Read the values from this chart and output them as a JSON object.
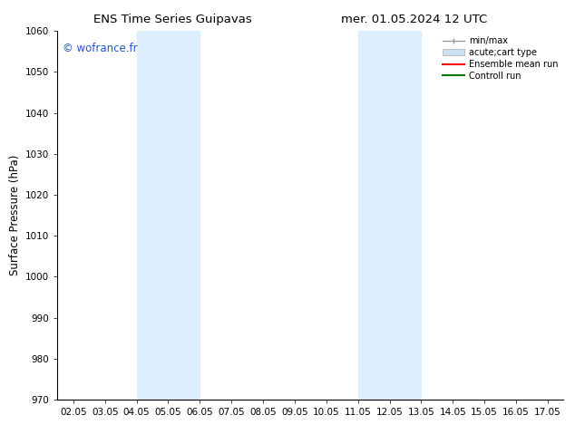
{
  "title_left": "ENS Time Series Guipavas",
  "title_right": "mer. 01.05.2024 12 UTC",
  "ylabel": "Surface Pressure (hPa)",
  "ylim": [
    970,
    1060
  ],
  "yticks": [
    970,
    980,
    990,
    1000,
    1010,
    1020,
    1030,
    1040,
    1050,
    1060
  ],
  "xtick_labels": [
    "02.05",
    "03.05",
    "04.05",
    "05.05",
    "06.05",
    "07.05",
    "08.05",
    "09.05",
    "10.05",
    "11.05",
    "12.05",
    "13.05",
    "14.05",
    "15.05",
    "16.05",
    "17.05"
  ],
  "xtick_positions": [
    0,
    1,
    2,
    3,
    4,
    5,
    6,
    7,
    8,
    9,
    10,
    11,
    12,
    13,
    14,
    15
  ],
  "xlim": [
    -0.5,
    15.5
  ],
  "shaded_bands": [
    {
      "x_start": 2,
      "x_end": 4,
      "color": "#ddeeff"
    },
    {
      "x_start": 9,
      "x_end": 11,
      "color": "#ddeeff"
    }
  ],
  "watermark": "© wofrance.fr",
  "watermark_color": "#2255cc",
  "legend_entries": [
    {
      "label": "min/max",
      "color": "#999999",
      "lw": 1,
      "type": "errorbar"
    },
    {
      "label": "acute;cart type",
      "color": "#cce0f0",
      "lw": 6,
      "type": "band"
    },
    {
      "label": "Ensemble mean run",
      "color": "#ff0000",
      "lw": 1.5,
      "type": "line"
    },
    {
      "label": "Controll run",
      "color": "#007700",
      "lw": 1.5,
      "type": "line"
    }
  ],
  "bg_color": "#ffffff",
  "grid_color": "#dddddd",
  "title_fontsize": 9.5,
  "label_fontsize": 8.5,
  "tick_fontsize": 7.5,
  "legend_fontsize": 7.0,
  "watermark_fontsize": 8.5
}
